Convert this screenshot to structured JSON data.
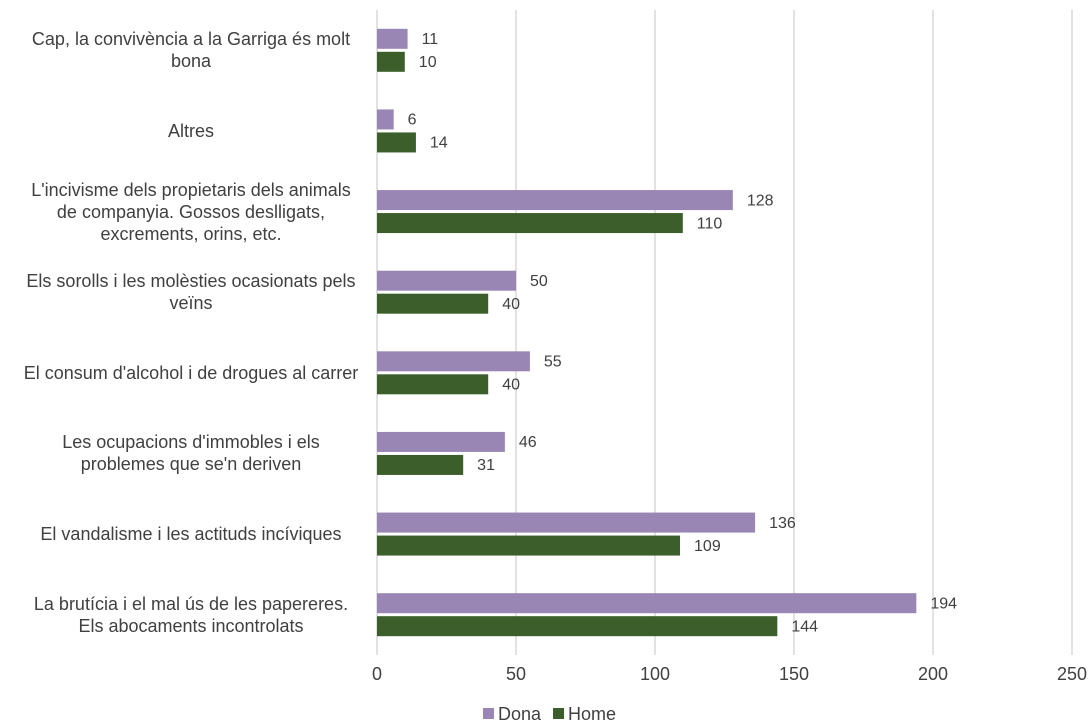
{
  "chart_data": {
    "type": "bar",
    "orientation": "horizontal",
    "categories": [
      "Cap, la convivència a la Garriga és molt bona",
      "Altres",
      "L'incivisme dels propietaris dels animals de companyia. Gossos deslligats, excrements, orins, etc.",
      "Els sorolls i les molèsties ocasionats pels veïns",
      "El consum d'alcohol i de drogues al carrer",
      "Les ocupacions d'immobles i els problemes que se'n deriven",
      "El vandalisme i les actituds incíviques",
      "La brutícia i el mal ús de les papereres. Els abocaments incontrolats"
    ],
    "series": [
      {
        "name": "Dona",
        "color": "#9a86b4",
        "values": [
          11,
          6,
          128,
          50,
          55,
          46,
          136,
          194
        ]
      },
      {
        "name": "Home",
        "color": "#3b5e2a",
        "values": [
          10,
          14,
          110,
          40,
          40,
          31,
          109,
          144
        ]
      }
    ],
    "xlim": [
      0,
      250
    ],
    "xticks": [
      0,
      50,
      100,
      150,
      200,
      250
    ],
    "grid": true,
    "legend": "bottom"
  }
}
